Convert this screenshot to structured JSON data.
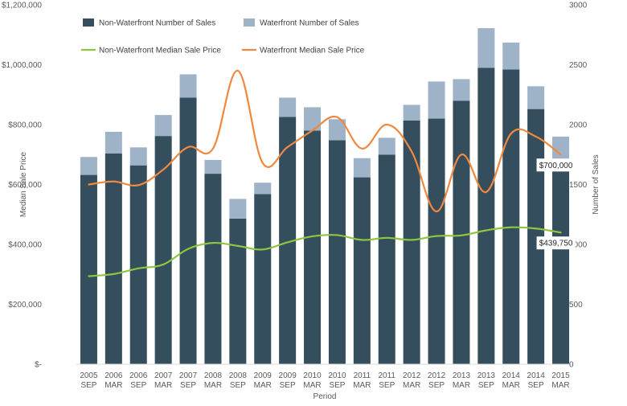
{
  "chart_data": {
    "type": "bar",
    "stacked": true,
    "combo": "bar+line",
    "categories": [
      [
        "2005",
        "SEP"
      ],
      [
        "2006",
        "MAR"
      ],
      [
        "2006",
        "SEP"
      ],
      [
        "2007",
        "MAR"
      ],
      [
        "2007",
        "SEP"
      ],
      [
        "2008",
        "MAR"
      ],
      [
        "2008",
        "SEP"
      ],
      [
        "2009",
        "MAR"
      ],
      [
        "2009",
        "SEP"
      ],
      [
        "2010",
        "MAR"
      ],
      [
        "2010",
        "SEP"
      ],
      [
        "2011",
        "MAR"
      ],
      [
        "2011",
        "SEP"
      ],
      [
        "2012",
        "MAR"
      ],
      [
        "2012",
        "SEP"
      ],
      [
        "2013",
        "MAR"
      ],
      [
        "2013",
        "SEP"
      ],
      [
        "2014",
        "MAR"
      ],
      [
        "2014",
        "SEP"
      ],
      [
        "2015",
        "MAR"
      ]
    ],
    "xlabel": "Period",
    "ylabel_left": "Median Sale Price",
    "ylabel_right": "Number of Sales",
    "ylim_left": [
      0,
      1200000
    ],
    "ylim_right": [
      0,
      3000
    ],
    "left_ticks": [
      "$-",
      "$200,000",
      "$400,000",
      "$600,000",
      "$800,000",
      "$1,000,000",
      "$1,200,000"
    ],
    "right_ticks": [
      "0",
      "500",
      "1000",
      "1500",
      "2000",
      "2500",
      "3000"
    ],
    "grid": false,
    "legend_position": "top-left",
    "bar_series": [
      {
        "name": "Non-Waterfront Number of Sales",
        "color": "#354e5e",
        "values": [
          1580,
          1760,
          1660,
          1905,
          2225,
          1590,
          1215,
          1420,
          2065,
          1950,
          1870,
          1560,
          1750,
          2035,
          2050,
          2200,
          2475,
          2460,
          2130,
          1610
        ]
      },
      {
        "name": "Waterfront Number of Sales",
        "color": "#9eb3c8",
        "values": [
          150,
          180,
          150,
          175,
          195,
          115,
          165,
          95,
          160,
          195,
          175,
          160,
          140,
          130,
          310,
          180,
          330,
          225,
          190,
          290
        ]
      }
    ],
    "line_series": [
      {
        "name": "Non-Waterfront Median Sale Price",
        "color": "#8dc63f",
        "values": [
          294000,
          301000,
          320000,
          333000,
          385000,
          405000,
          395000,
          383000,
          407000,
          427000,
          431000,
          415000,
          422000,
          415000,
          428000,
          430000,
          447000,
          457000,
          453000,
          439750
        ]
      },
      {
        "name": "Waterfront Median Sale Price",
        "color": "#f0883e",
        "values": [
          600000,
          610000,
          598000,
          650000,
          725000,
          720000,
          980000,
          672000,
          725000,
          780000,
          825000,
          720000,
          800000,
          710000,
          510000,
          700000,
          575000,
          770000,
          760000,
          700000
        ]
      }
    ],
    "callouts": [
      {
        "label": "$700,000",
        "series": 1,
        "index": 19
      },
      {
        "label": "$439,750",
        "series": 0,
        "index": 19
      }
    ]
  }
}
